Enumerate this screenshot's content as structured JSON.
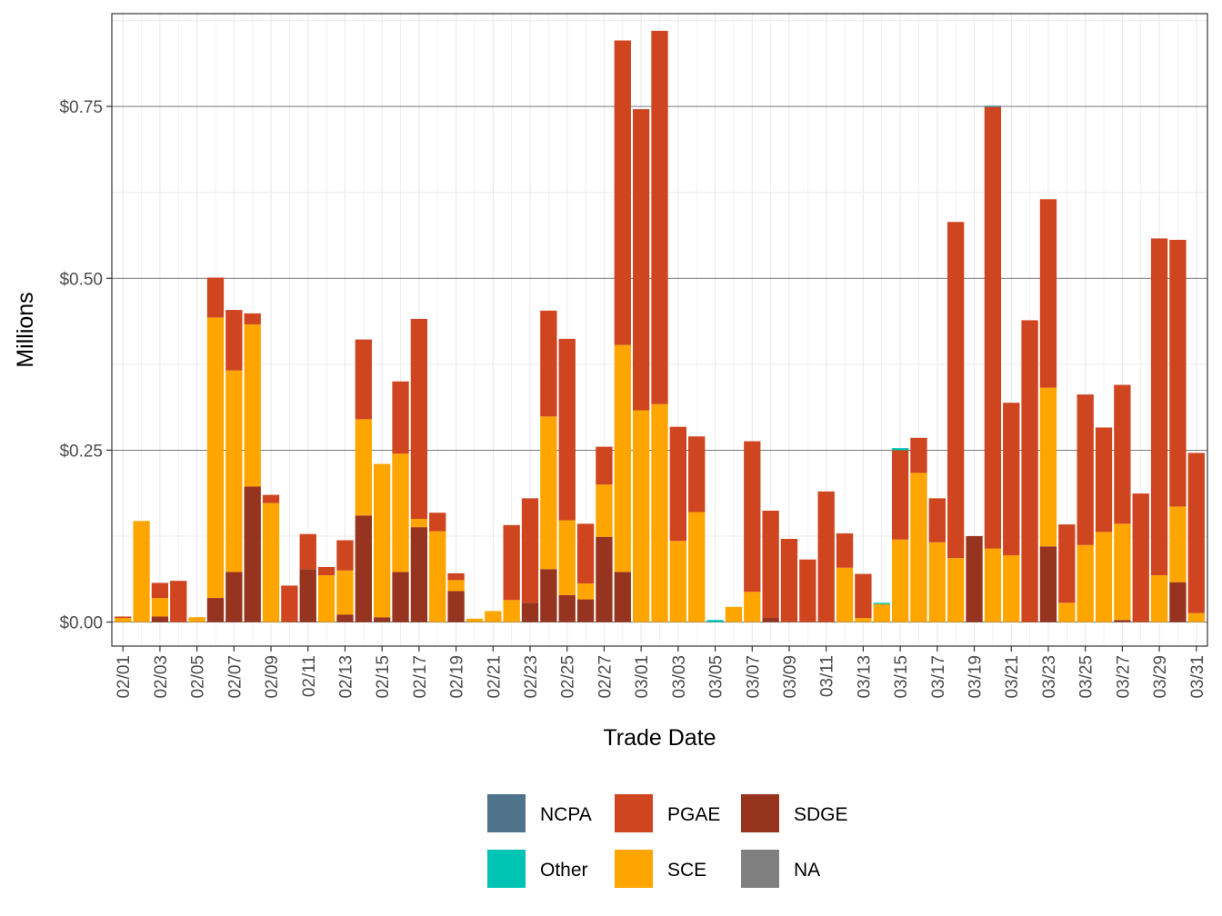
{
  "chart_data": {
    "type": "bar",
    "stacked": true,
    "xlabel": "Trade Date",
    "ylabel": "Millions",
    "ylim": [
      -0.035,
      0.885
    ],
    "yticks": [
      0,
      0.25,
      0.5,
      0.75
    ],
    "ytick_labels": [
      "$0.00",
      "$0.25",
      "$0.50",
      "$0.75"
    ],
    "grid": true,
    "legend_position": "bottom",
    "categories": [
      "02/01",
      "02/02",
      "02/03",
      "02/04",
      "02/05",
      "02/06",
      "02/07",
      "02/08",
      "02/09",
      "02/10",
      "02/11",
      "02/12",
      "02/13",
      "02/14",
      "02/15",
      "02/16",
      "02/17",
      "02/18",
      "02/19",
      "02/20",
      "02/21",
      "02/22",
      "02/23",
      "02/24",
      "02/25",
      "02/26",
      "02/27",
      "02/28",
      "03/01",
      "03/02",
      "03/03",
      "03/04",
      "03/05",
      "03/06",
      "03/07",
      "03/08",
      "03/09",
      "03/10",
      "03/11",
      "03/12",
      "03/13",
      "03/14",
      "03/15",
      "03/16",
      "03/17",
      "03/18",
      "03/19",
      "03/20",
      "03/21",
      "03/22",
      "03/23",
      "03/24",
      "03/25",
      "03/26",
      "03/27",
      "03/28",
      "03/29",
      "03/30",
      "03/31"
    ],
    "xtick_labels": [
      "02/01",
      "02/03",
      "02/05",
      "02/07",
      "02/09",
      "02/11",
      "02/13",
      "02/15",
      "02/17",
      "02/19",
      "02/21",
      "02/23",
      "02/25",
      "02/27",
      "03/01",
      "03/03",
      "03/05",
      "03/07",
      "03/09",
      "03/11",
      "03/13",
      "03/15",
      "03/17",
      "03/19",
      "03/21",
      "03/23",
      "03/25",
      "03/27",
      "03/29",
      "03/31"
    ],
    "series": [
      {
        "name": "SDGE",
        "color": "#96341f",
        "values": [
          0,
          0,
          0.008,
          0,
          0,
          0.035,
          0.073,
          0.197,
          0,
          0,
          0.077,
          0,
          0.011,
          0.155,
          0.007,
          0.073,
          0.138,
          0,
          0.045,
          0,
          0,
          0,
          0.028,
          0.077,
          0.039,
          0.033,
          0.124,
          0.073,
          0,
          0,
          0,
          0,
          0,
          0,
          0,
          0.006,
          0,
          0,
          0,
          0,
          0,
          0,
          0,
          0,
          0,
          0,
          0.125,
          0,
          0,
          0,
          0.11,
          0,
          0,
          0,
          0.003,
          0,
          0,
          0.058,
          0
        ]
      },
      {
        "name": "SCE",
        "color": "#ffa500",
        "values": [
          0.006,
          0.147,
          0.027,
          0,
          0.007,
          0.408,
          0.293,
          0.236,
          0.173,
          0,
          0,
          0.068,
          0.064,
          0.14,
          0.223,
          0.172,
          0.012,
          0.132,
          0.016,
          0.005,
          0.016,
          0.032,
          0,
          0.222,
          0.109,
          0.023,
          0.076,
          0.33,
          0.308,
          0.317,
          0.118,
          0.16,
          0,
          0.022,
          0.044,
          0,
          0,
          0,
          0,
          0.079,
          0.006,
          0.026,
          0.12,
          0.217,
          0.116,
          0.093,
          0,
          0.107,
          0.097,
          0,
          0.231,
          0.028,
          0.112,
          0.131,
          0.14,
          0,
          0.068,
          0.11,
          0.013
        ]
      },
      {
        "name": "PGAE",
        "color": "#cf4520",
        "values": [
          0.002,
          0,
          0.022,
          0.06,
          0,
          0.058,
          0.088,
          0.016,
          0.012,
          0.053,
          0.051,
          0.012,
          0.044,
          0.116,
          0,
          0.105,
          0.291,
          0.027,
          0.01,
          0,
          0,
          0.109,
          0.152,
          0.154,
          0.264,
          0.087,
          0.055,
          0.443,
          0.438,
          0.543,
          0.166,
          0.11,
          0,
          0,
          0.219,
          0.156,
          0.121,
          0.091,
          0.19,
          0.05,
          0.064,
          0,
          0.13,
          0.051,
          0.064,
          0.489,
          0,
          0.642,
          0.222,
          0.439,
          0.274,
          0.114,
          0.219,
          0.152,
          0.202,
          0.187,
          0.49,
          0.388,
          0.233
        ]
      },
      {
        "name": "Other",
        "color": "#00c4b3",
        "values": [
          0,
          0,
          0,
          0,
          0,
          0,
          0,
          0,
          0,
          0,
          0,
          0,
          0,
          0,
          0,
          0,
          0,
          0,
          0,
          0,
          0,
          0,
          0,
          0,
          0,
          0,
          0,
          0,
          0,
          0,
          0,
          0,
          0.003,
          0,
          0,
          0,
          0,
          0,
          0,
          0,
          0,
          0.002,
          0.003,
          0,
          0,
          0,
          0,
          0,
          0,
          0,
          0,
          0,
          0,
          0,
          0,
          0,
          0,
          0,
          0
        ]
      },
      {
        "name": "NCPA",
        "color": "#4e738a",
        "values": [
          0,
          0,
          0,
          0,
          0,
          0,
          0,
          0,
          0,
          0,
          0,
          0,
          0,
          0,
          0,
          0,
          0,
          0,
          0,
          0,
          0,
          0,
          0,
          0,
          0,
          0,
          0,
          0,
          0,
          0,
          0,
          0,
          0,
          0,
          0,
          0,
          0,
          0,
          0,
          0,
          0,
          0,
          0,
          0,
          0,
          0,
          0,
          0.002,
          0,
          0,
          0,
          0,
          0,
          0,
          0,
          0,
          0,
          0,
          0
        ]
      },
      {
        "name": "NA",
        "color": "#808080",
        "values": [
          0,
          0,
          0,
          0,
          0,
          0,
          0,
          0,
          0,
          0,
          0,
          0,
          0,
          0,
          0,
          0,
          0,
          0,
          0,
          0,
          0,
          0,
          0,
          0,
          0,
          0,
          0,
          0,
          0,
          0,
          0,
          0,
          0,
          0,
          0,
          0,
          0,
          0,
          0,
          0,
          0,
          0,
          0,
          0,
          0,
          0,
          0,
          0,
          0,
          0,
          0,
          0,
          0,
          0,
          0,
          0,
          0,
          0,
          0
        ]
      }
    ],
    "legend": [
      {
        "name": "NCPA",
        "color": "#4e738a"
      },
      {
        "name": "Other",
        "color": "#00c4b3"
      },
      {
        "name": "PGAE",
        "color": "#cf4520"
      },
      {
        "name": "SCE",
        "color": "#ffa500"
      },
      {
        "name": "SDGE",
        "color": "#96341f"
      },
      {
        "name": "NA",
        "color": "#808080"
      }
    ]
  }
}
